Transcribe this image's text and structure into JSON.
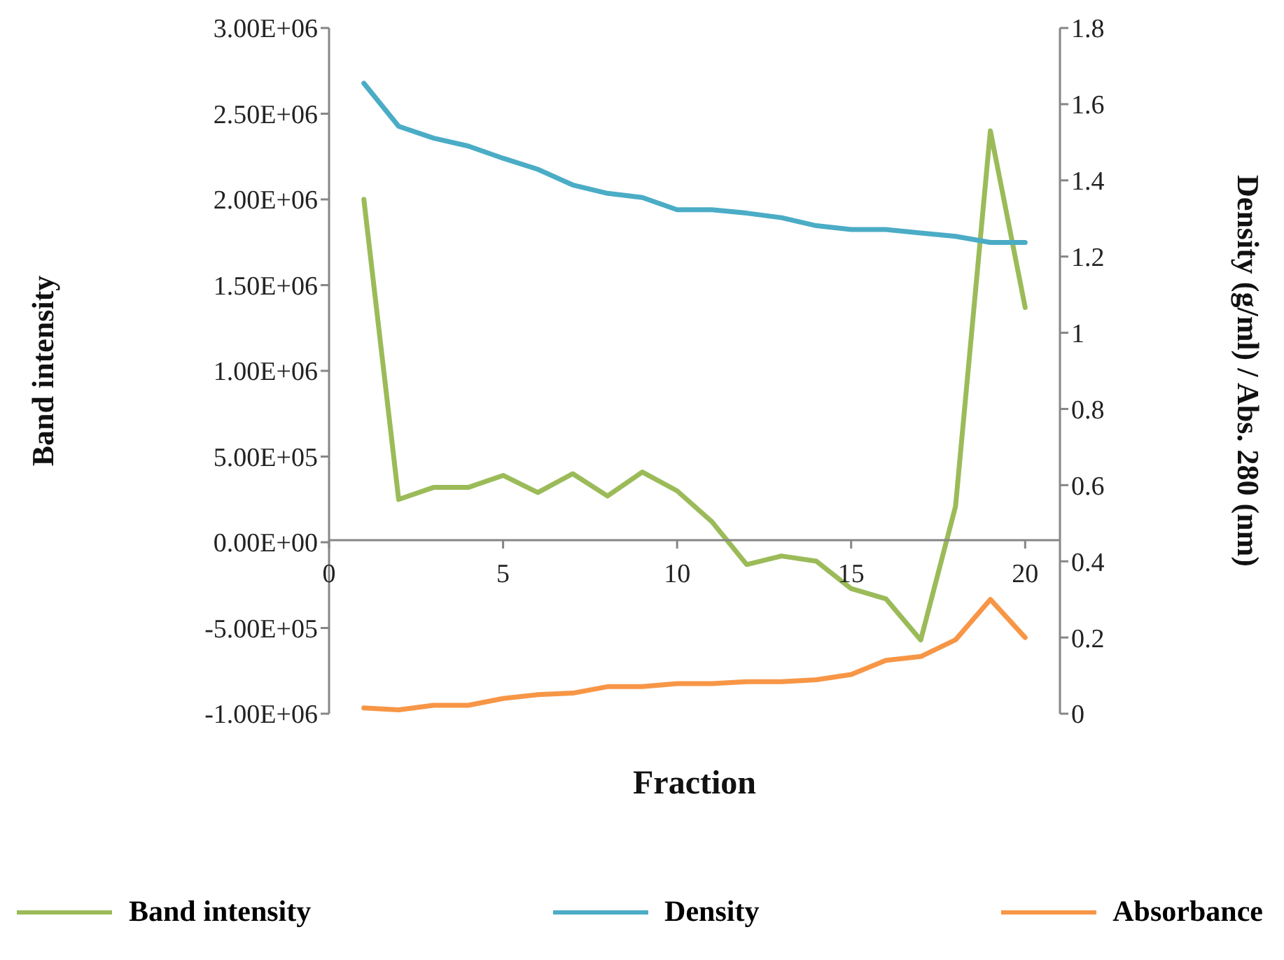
{
  "chart_data": {
    "type": "line",
    "xlabel": "Fraction",
    "ylabel": "Band intensity",
    "y2label": "Density (g/ml) / Abs. 280 (nm)",
    "x": [
      1,
      2,
      3,
      4,
      5,
      6,
      7,
      8,
      9,
      10,
      11,
      12,
      13,
      14,
      15,
      16,
      17,
      18,
      19,
      20
    ],
    "series": [
      {
        "name": "Band intensity",
        "color": "#9bbb59",
        "values": [
          2000000,
          250000,
          320000,
          320000,
          390000,
          290000,
          400000,
          270000,
          410000,
          300000,
          120000,
          -130000,
          -80000,
          -110000,
          -270000,
          -330000,
          -570000,
          210000,
          2400000,
          1370000
        ]
      },
      {
        "name": "Density",
        "color": "#4bacc6",
        "axis": "y2",
        "values": [
          1.655,
          1.542,
          1.511,
          1.49,
          1.458,
          1.429,
          1.388,
          1.366,
          1.355,
          1.323,
          1.323,
          1.314,
          1.302,
          1.281,
          1.271,
          1.271,
          1.262,
          1.253,
          1.237,
          1.237
        ]
      },
      {
        "name": "Absorbance",
        "color": "#f79646",
        "axis": "y2",
        "values": [
          0.015,
          0.01,
          0.022,
          0.022,
          0.04,
          0.05,
          0.054,
          0.071,
          0.071,
          0.079,
          0.079,
          0.084,
          0.084,
          0.089,
          0.103,
          0.14,
          0.15,
          0.194,
          0.3,
          0.2
        ]
      }
    ],
    "xlim": [
      0,
      21
    ],
    "xticks": [
      0,
      5,
      10,
      15,
      20
    ],
    "ylim": [
      -1000000,
      3000000
    ],
    "yticks": [
      {
        "value": -1000000,
        "label": "-1.00E+06"
      },
      {
        "value": -500000,
        "label": "-5.00E+05"
      },
      {
        "value": 0,
        "label": "0.00E+00"
      },
      {
        "value": 500000,
        "label": "5.00E+05"
      },
      {
        "value": 1000000,
        "label": "1.00E+06"
      },
      {
        "value": 1500000,
        "label": "1.50E+06"
      },
      {
        "value": 2000000,
        "label": "2.00E+06"
      },
      {
        "value": 2500000,
        "label": "2.50E+06"
      },
      {
        "value": 3000000,
        "label": "3.00E+06"
      }
    ],
    "y2lim": [
      0,
      1.8
    ],
    "y2ticks": [
      0,
      0.2,
      0.4,
      0.6,
      0.8,
      1,
      1.2,
      1.4,
      1.6,
      1.8
    ],
    "grid": false,
    "legend": "bottom",
    "marker": "none",
    "line_style": "solid"
  }
}
